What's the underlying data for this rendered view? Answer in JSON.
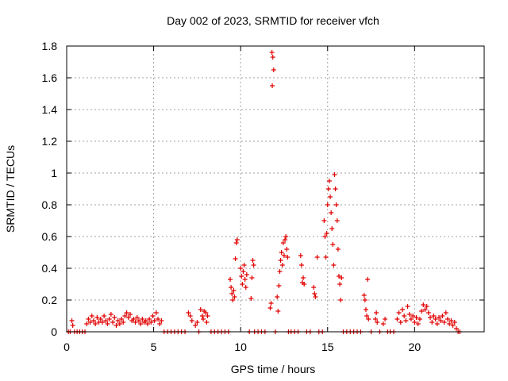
{
  "chart_data": {
    "type": "scatter",
    "title": "Day 002 of 2023, SRMTID for receiver vfch",
    "xlabel": "GPS time / hours",
    "ylabel": "SRMTID / TECUs",
    "xlim": [
      0,
      24
    ],
    "ylim": [
      0,
      1.8
    ],
    "xticks": [
      0,
      5,
      10,
      15,
      20
    ],
    "xtick_labels": [
      "0",
      "5",
      "10",
      "15",
      "20"
    ],
    "yticks": [
      0,
      0.2,
      0.4,
      0.6,
      0.8,
      1,
      1.2,
      1.4,
      1.6,
      1.8
    ],
    "ytick_labels": [
      "0",
      "0.2",
      "0.4",
      "0.6",
      "0.8",
      "1",
      "1.2",
      "1.4",
      "1.6",
      "1.8"
    ],
    "grid": true,
    "marker": "+",
    "color": "#e00000",
    "series": [
      {
        "name": "SRMTID",
        "points": [
          [
            0.1,
            0.0
          ],
          [
            0.2,
            0.0
          ],
          [
            0.3,
            0.07
          ],
          [
            0.35,
            0.04
          ],
          [
            0.45,
            0.0
          ],
          [
            0.6,
            0.0
          ],
          [
            0.75,
            0.0
          ],
          [
            0.9,
            0.0
          ],
          [
            1.05,
            0.0
          ],
          [
            1.15,
            0.05
          ],
          [
            1.25,
            0.08
          ],
          [
            1.35,
            0.06
          ],
          [
            1.45,
            0.1
          ],
          [
            1.55,
            0.07
          ],
          [
            1.65,
            0.05
          ],
          [
            1.75,
            0.09
          ],
          [
            1.85,
            0.06
          ],
          [
            1.95,
            0.08
          ],
          [
            2.05,
            0.06
          ],
          [
            2.15,
            0.1
          ],
          [
            2.25,
            0.07
          ],
          [
            2.35,
            0.05
          ],
          [
            2.45,
            0.08
          ],
          [
            2.55,
            0.11
          ],
          [
            2.65,
            0.06
          ],
          [
            2.75,
            0.09
          ],
          [
            2.85,
            0.04
          ],
          [
            2.95,
            0.07
          ],
          [
            3.05,
            0.05
          ],
          [
            3.15,
            0.08
          ],
          [
            3.25,
            0.06
          ],
          [
            3.35,
            0.1
          ],
          [
            3.45,
            0.12
          ],
          [
            3.55,
            0.09
          ],
          [
            3.65,
            0.11
          ],
          [
            3.75,
            0.07
          ],
          [
            3.85,
            0.08
          ],
          [
            3.95,
            0.06
          ],
          [
            4.05,
            0.09
          ],
          [
            4.15,
            0.07
          ],
          [
            4.25,
            0.05
          ],
          [
            4.35,
            0.08
          ],
          [
            4.45,
            0.06
          ],
          [
            4.55,
            0.07
          ],
          [
            4.65,
            0.05
          ],
          [
            4.75,
            0.08
          ],
          [
            4.85,
            0.06
          ],
          [
            4.95,
            0.1
          ],
          [
            5.05,
            0.07
          ],
          [
            5.15,
            0.12
          ],
          [
            5.25,
            0.08
          ],
          [
            5.35,
            0.05
          ],
          [
            5.45,
            0.07
          ],
          [
            5.6,
            0.0
          ],
          [
            5.8,
            0.0
          ],
          [
            6.0,
            0.0
          ],
          [
            6.2,
            0.0
          ],
          [
            6.4,
            0.0
          ],
          [
            6.6,
            0.0
          ],
          [
            6.8,
            0.0
          ],
          [
            7.0,
            0.12
          ],
          [
            7.1,
            0.1
          ],
          [
            7.2,
            0.07
          ],
          [
            7.4,
            0.04
          ],
          [
            7.5,
            0.06
          ],
          [
            7.6,
            0.0
          ],
          [
            7.7,
            0.14
          ],
          [
            7.8,
            0.1
          ],
          [
            7.85,
            0.08
          ],
          [
            7.9,
            0.13
          ],
          [
            8.0,
            0.12
          ],
          [
            8.05,
            0.06
          ],
          [
            8.1,
            0.1
          ],
          [
            8.3,
            0.0
          ],
          [
            8.5,
            0.0
          ],
          [
            8.7,
            0.0
          ],
          [
            8.9,
            0.0
          ],
          [
            9.1,
            0.0
          ],
          [
            9.3,
            0.0
          ],
          [
            9.4,
            0.33
          ],
          [
            9.45,
            0.28
          ],
          [
            9.5,
            0.24
          ],
          [
            9.55,
            0.2
          ],
          [
            9.6,
            0.26
          ],
          [
            9.65,
            0.22
          ],
          [
            9.7,
            0.46
          ],
          [
            9.75,
            0.56
          ],
          [
            9.8,
            0.58
          ],
          [
            10.0,
            0.4
          ],
          [
            10.05,
            0.35
          ],
          [
            10.1,
            0.3
          ],
          [
            10.15,
            0.38
          ],
          [
            10.2,
            0.42
          ],
          [
            10.25,
            0.33
          ],
          [
            10.3,
            0.28
          ],
          [
            10.35,
            0.36
          ],
          [
            10.5,
            0.0
          ],
          [
            10.6,
            0.21
          ],
          [
            10.65,
            0.34
          ],
          [
            10.7,
            0.45
          ],
          [
            10.75,
            0.42
          ],
          [
            10.8,
            0.0
          ],
          [
            11.0,
            0.0
          ],
          [
            11.2,
            0.0
          ],
          [
            11.4,
            0.0
          ],
          [
            11.7,
            0.15
          ],
          [
            11.75,
            0.18
          ],
          [
            11.8,
            1.76
          ],
          [
            11.85,
            1.73
          ],
          [
            11.9,
            1.65
          ],
          [
            11.82,
            1.55
          ],
          [
            12.0,
            0.0
          ],
          [
            12.1,
            0.22
          ],
          [
            12.15,
            0.13
          ],
          [
            12.2,
            0.29
          ],
          [
            12.25,
            0.38
          ],
          [
            12.3,
            0.45
          ],
          [
            12.35,
            0.5
          ],
          [
            12.4,
            0.42
          ],
          [
            12.45,
            0.56
          ],
          [
            12.5,
            0.48
          ],
          [
            12.55,
            0.58
          ],
          [
            12.6,
            0.6
          ],
          [
            12.65,
            0.52
          ],
          [
            12.7,
            0.47
          ],
          [
            12.75,
            0.0
          ],
          [
            12.9,
            0.0
          ],
          [
            13.1,
            0.0
          ],
          [
            13.3,
            0.0
          ],
          [
            13.45,
            0.48
          ],
          [
            13.5,
            0.42
          ],
          [
            13.55,
            0.31
          ],
          [
            13.6,
            0.34
          ],
          [
            13.65,
            0.3
          ],
          [
            13.8,
            0.0
          ],
          [
            14.0,
            0.0
          ],
          [
            14.2,
            0.28
          ],
          [
            14.25,
            0.24
          ],
          [
            14.3,
            0.22
          ],
          [
            14.4,
            0.47
          ],
          [
            14.5,
            0.0
          ],
          [
            14.7,
            0.0
          ],
          [
            14.8,
            0.7
          ],
          [
            14.85,
            0.6
          ],
          [
            14.9,
            0.47
          ],
          [
            14.95,
            0.62
          ],
          [
            15.0,
            0.8
          ],
          [
            15.05,
            0.9
          ],
          [
            15.1,
            0.95
          ],
          [
            15.15,
            0.85
          ],
          [
            15.2,
            0.75
          ],
          [
            15.25,
            0.65
          ],
          [
            15.3,
            0.55
          ],
          [
            15.35,
            0.42
          ],
          [
            15.4,
            0.99
          ],
          [
            15.45,
            0.9
          ],
          [
            15.5,
            0.8
          ],
          [
            15.55,
            0.7
          ],
          [
            15.6,
            0.52
          ],
          [
            15.65,
            0.35
          ],
          [
            15.7,
            0.3
          ],
          [
            15.75,
            0.2
          ],
          [
            15.8,
            0.34
          ],
          [
            15.9,
            0.0
          ],
          [
            16.1,
            0.0
          ],
          [
            16.3,
            0.0
          ],
          [
            16.5,
            0.0
          ],
          [
            16.7,
            0.0
          ],
          [
            16.9,
            0.0
          ],
          [
            17.1,
            0.23
          ],
          [
            17.15,
            0.2
          ],
          [
            17.2,
            0.14
          ],
          [
            17.25,
            0.1
          ],
          [
            17.3,
            0.33
          ],
          [
            17.35,
            0.08
          ],
          [
            17.5,
            0.0
          ],
          [
            17.75,
            0.08
          ],
          [
            17.8,
            0.12
          ],
          [
            17.85,
            0.06
          ],
          [
            18.0,
            0.0
          ],
          [
            18.2,
            0.05
          ],
          [
            18.3,
            0.08
          ],
          [
            18.45,
            0.0
          ],
          [
            18.6,
            0.0
          ],
          [
            18.8,
            0.0
          ],
          [
            19.0,
            0.08
          ],
          [
            19.1,
            0.12
          ],
          [
            19.2,
            0.06
          ],
          [
            19.3,
            0.14
          ],
          [
            19.4,
            0.1
          ],
          [
            19.5,
            0.07
          ],
          [
            19.6,
            0.16
          ],
          [
            19.7,
            0.11
          ],
          [
            19.8,
            0.08
          ],
          [
            19.9,
            0.1
          ],
          [
            20.0,
            0.06
          ],
          [
            20.1,
            0.09
          ],
          [
            20.2,
            0.05
          ],
          [
            20.3,
            0.08
          ],
          [
            20.4,
            0.13
          ],
          [
            20.5,
            0.17
          ],
          [
            20.6,
            0.14
          ],
          [
            20.7,
            0.16
          ],
          [
            20.8,
            0.12
          ],
          [
            20.9,
            0.09
          ],
          [
            21.0,
            0.06
          ],
          [
            21.1,
            0.1
          ],
          [
            21.2,
            0.08
          ],
          [
            21.3,
            0.05
          ],
          [
            21.4,
            0.09
          ],
          [
            21.5,
            0.07
          ],
          [
            21.6,
            0.1
          ],
          [
            21.7,
            0.06
          ],
          [
            21.8,
            0.12
          ],
          [
            21.9,
            0.08
          ],
          [
            22.0,
            0.05
          ],
          [
            22.1,
            0.07
          ],
          [
            22.2,
            0.04
          ],
          [
            22.3,
            0.06
          ],
          [
            22.4,
            0.02
          ],
          [
            22.5,
            0.0
          ],
          [
            22.6,
            0.0
          ]
        ]
      }
    ]
  }
}
